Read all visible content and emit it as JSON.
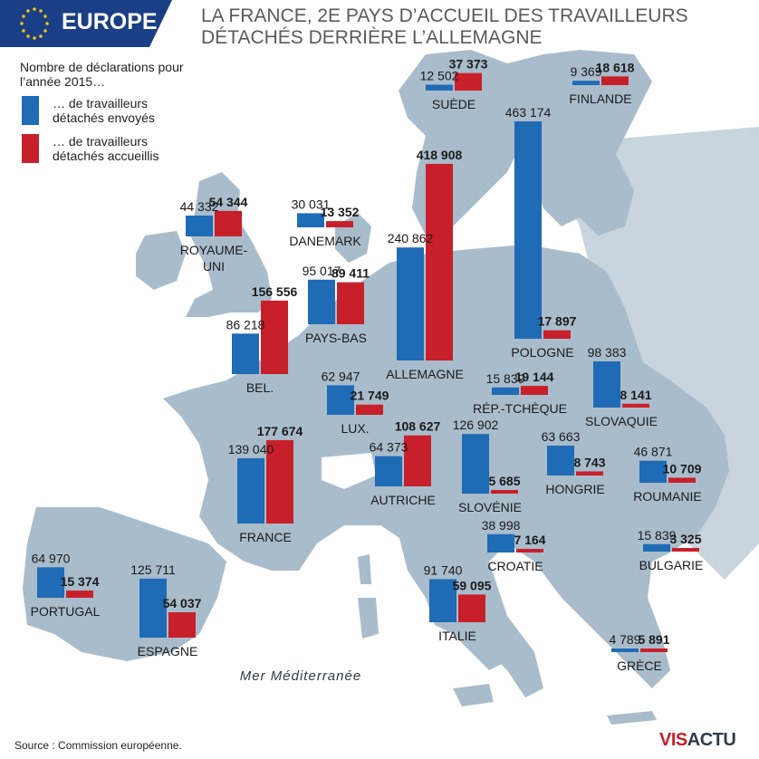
{
  "header": {
    "tag": "EUROPE",
    "title": "LA FRANCE, 2E PAYS D’ACCUEIL DES TRAVAILLEURS DÉTACHÉS DERRIÈRE L’ALLEMAGNE"
  },
  "legend": {
    "heading": "Nombre de déclarations pour l’année 2015…",
    "sent": "… de travailleurs détachés envoyés",
    "received": "… de travailleurs détachés accueillis"
  },
  "colors": {
    "sent": "#1f6bb5",
    "received": "#c8202a",
    "land": "#a9bccb",
    "land_other": "#c8d4de",
    "sea": "#ffffff",
    "header": "#1a3f86"
  },
  "sea_label": "Mer Méditerranée",
  "source": "Source : Commission européenne.",
  "logo": {
    "part1": "VIS",
    "part2": "ACTU"
  },
  "chart_data": {
    "type": "bar",
    "title": "LA FRANCE, 2E PAYS D’ACCUEIL DES TRAVAILLEURS DÉTACHÉS DERRIÈRE L’ALLEMAGNE",
    "series_names": [
      "… de travailleurs détachés envoyés",
      "… de travailleurs détachés accueillis"
    ],
    "countries": [
      {
        "name": "SUÈDE",
        "sent": 12502,
        "received": 37373,
        "sent_label": "12 502",
        "received_label": "37 373"
      },
      {
        "name": "FINLANDE",
        "sent": 9369,
        "received": 18618,
        "sent_label": "9 369",
        "received_label": "18 618"
      },
      {
        "name": "ROYAUME-UNI",
        "sent": 44332,
        "received": 54344,
        "sent_label": "44 332",
        "received_label": "54 344"
      },
      {
        "name": "DANEMARK",
        "sent": 30031,
        "received": 13352,
        "sent_label": "30 031",
        "received_label": "13 352"
      },
      {
        "name": "ALLEMAGNE",
        "sent": 240862,
        "received": 418908,
        "sent_label": "240 862",
        "received_label": "418 908"
      },
      {
        "name": "POLOGNE",
        "sent": 463174,
        "received": 17897,
        "sent_label": "463 174",
        "received_label": "17 897"
      },
      {
        "name": "PAYS-BAS",
        "sent": 95017,
        "received": 89411,
        "sent_label": "95 017",
        "received_label": "89 411"
      },
      {
        "name": "BEL.",
        "sent": 86218,
        "received": 156556,
        "sent_label": "86 218",
        "received_label": "156 556"
      },
      {
        "name": "LUX.",
        "sent": 62947,
        "received": 21749,
        "sent_label": "62 947",
        "received_label": "21 749"
      },
      {
        "name": "RÉP.-TCHÈQUE",
        "sent": 15839,
        "received": 19144,
        "sent_label": "15 839",
        "received_label": "19 144"
      },
      {
        "name": "SLOVAQUIE",
        "sent": 98383,
        "received": 8141,
        "sent_label": "98 383",
        "received_label": "8 141"
      },
      {
        "name": "FRANCE",
        "sent": 139040,
        "received": 177674,
        "sent_label": "139 040",
        "received_label": "177 674"
      },
      {
        "name": "AUTRICHE",
        "sent": 64373,
        "received": 108627,
        "sent_label": "64 373",
        "received_label": "108 627"
      },
      {
        "name": "SLOVÉNIE",
        "sent": 126902,
        "received": 5685,
        "sent_label": "126 902",
        "received_label": "5 685"
      },
      {
        "name": "HONGRIE",
        "sent": 63663,
        "received": 8743,
        "sent_label": "63 663",
        "received_label": "8 743"
      },
      {
        "name": "ROUMANIE",
        "sent": 46871,
        "received": 10709,
        "sent_label": "46 871",
        "received_label": "10 709"
      },
      {
        "name": "CROATIE",
        "sent": 38998,
        "received": 7164,
        "sent_label": "38 998",
        "received_label": "7 164"
      },
      {
        "name": "BULGARIE",
        "sent": 15839,
        "received": 3325,
        "sent_label": "15 839",
        "received_label": "3 325"
      },
      {
        "name": "PORTUGAL",
        "sent": 64970,
        "received": 15374,
        "sent_label": "64 970",
        "received_label": "15 374"
      },
      {
        "name": "ESPAGNE",
        "sent": 125711,
        "received": 54037,
        "sent_label": "125 711",
        "received_label": "54 037"
      },
      {
        "name": "ITALIE",
        "sent": 91740,
        "received": 59095,
        "sent_label": "91 740",
        "received_label": "59 095"
      },
      {
        "name": "GRÈCE",
        "sent": 4789,
        "received": 5891,
        "sent_label": "4 789",
        "received_label": "5 891"
      }
    ]
  }
}
